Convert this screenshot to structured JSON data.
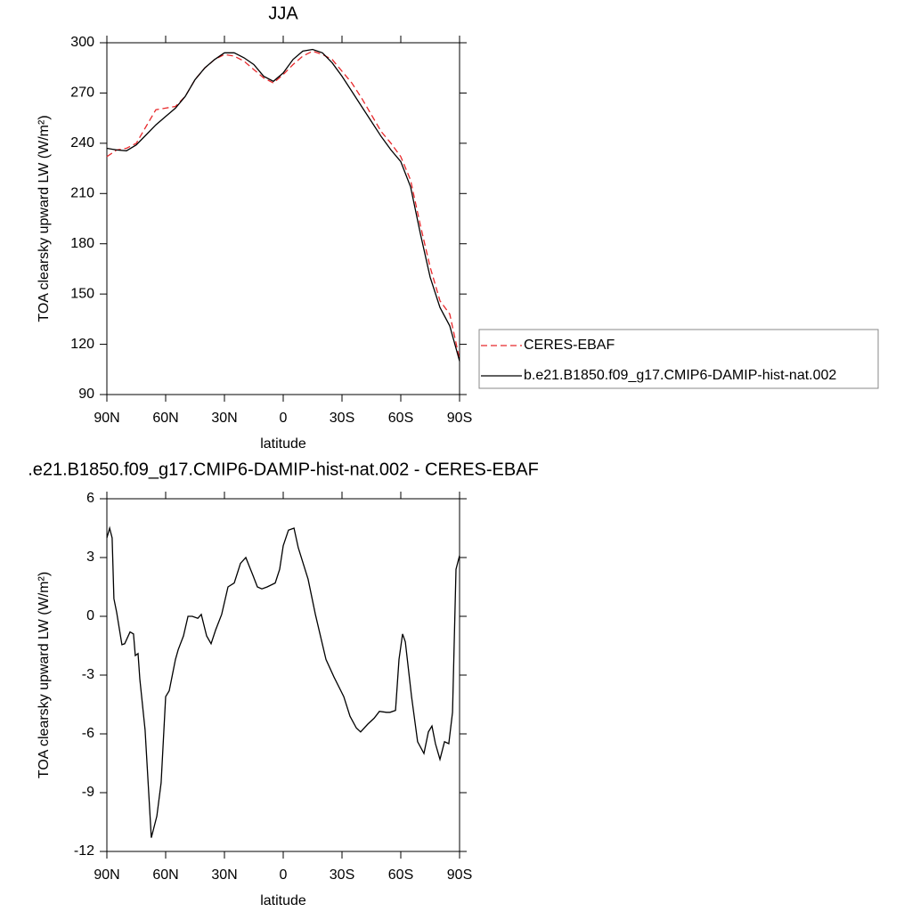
{
  "chart_data": [
    {
      "type": "line",
      "title": "JJA",
      "xlabel": "latitude",
      "ylabel": "TOA clearsky upward LW (W/m²)",
      "x": [
        90,
        85,
        80,
        75,
        70,
        65,
        60,
        55,
        50,
        45,
        40,
        35,
        30,
        25,
        20,
        15,
        10,
        5,
        0,
        -5,
        -10,
        -15,
        -20,
        -25,
        -30,
        -35,
        -40,
        -45,
        -50,
        -55,
        -60,
        -65,
        -70,
        -75,
        -80,
        -85,
        -90
      ],
      "series": [
        {
          "name": "CERES-EBAF",
          "color": "#e8282b",
          "dash": true,
          "values": [
            232,
            236,
            237,
            240,
            250,
            260,
            261,
            262,
            268,
            278,
            285,
            290,
            293,
            292,
            289,
            284,
            279,
            276,
            281,
            287,
            292,
            295,
            293,
            290,
            283,
            276,
            267,
            257,
            247,
            240,
            232,
            218,
            191,
            166,
            146,
            138,
            111
          ]
        },
        {
          "name": "b.e21.B1850.f09_g17.CMIP6-DAMIP-hist-nat.002",
          "color": "#000000",
          "dash": false,
          "values": [
            237,
            236,
            235.5,
            239,
            245,
            251,
            256,
            261,
            268,
            278,
            285,
            290,
            294,
            294,
            291,
            287,
            280,
            277,
            282,
            290,
            295,
            296,
            294,
            288,
            280,
            271,
            262,
            253,
            244,
            236,
            229,
            214,
            186,
            160,
            142,
            131,
            110
          ]
        }
      ],
      "xlim": [
        90,
        -90
      ],
      "xticks": [
        {
          "value": 90,
          "label": "90N"
        },
        {
          "value": 60,
          "label": "60N"
        },
        {
          "value": 30,
          "label": "30N"
        },
        0,
        {
          "value": -30,
          "label": "30S"
        },
        {
          "value": -60,
          "label": "60S"
        },
        {
          "value": -90,
          "label": "90S"
        }
      ],
      "ylim": [
        90,
        300
      ],
      "yticks": [
        90,
        120,
        150,
        180,
        210,
        240,
        270,
        300
      ],
      "legend": "right"
    },
    {
      "type": "line",
      "title": ".e21.B1850.f09_g17.CMIP6-DAMIP-hist-nat.002 - CERES-EBAF",
      "xlabel": "latitude",
      "ylabel": "TOA clearsky upward LW (W/m²)",
      "x": [
        90,
        88.6,
        87.3,
        86.4,
        85,
        82.3,
        80.9,
        78.2,
        76.4,
        75.5,
        74.1,
        73.2,
        70.5,
        67.3,
        64.5,
        62.3,
        60,
        58.2,
        55,
        53.6,
        50.9,
        48.6,
        46.4,
        43.6,
        41.8,
        39.1,
        36.8,
        34.5,
        31.4,
        28.2,
        25,
        21.8,
        19.1,
        15.5,
        13.2,
        10.9,
        8.2,
        4.1,
        1.8,
        0,
        -2.7,
        -5.5,
        -7.7,
        -12.7,
        -16.4,
        -21.8,
        -25.9,
        -30.9,
        -34.1,
        -37.3,
        -39.5,
        -43.2,
        -46.4,
        -49.1,
        -52.7,
        -54.5,
        -57.3,
        -59.1,
        -60.9,
        -62.3,
        -65.5,
        -68.6,
        -71.8,
        -74.1,
        -75.9,
        -77.7,
        -80,
        -82.3,
        -84.5,
        -86.4,
        -88.2,
        -90
      ],
      "series": [
        {
          "color": "#000000",
          "dash": false,
          "values": [
            4.0,
            4.5,
            4.0,
            0.9,
            0.2,
            -1.45,
            -1.4,
            -0.8,
            -0.9,
            -2.0,
            -1.9,
            -3.2,
            -5.8,
            -11.3,
            -10.2,
            -8.5,
            -4.1,
            -3.8,
            -2.2,
            -1.7,
            -1.0,
            0,
            0,
            -0.1,
            0.1,
            -1.0,
            -1.4,
            -0.7,
            0.1,
            1.5,
            1.7,
            2.7,
            3.0,
            2.1,
            1.5,
            1.4,
            1.5,
            1.7,
            2.4,
            3.6,
            4.4,
            4.5,
            3.5,
            1.9,
            0.1,
            -2.2,
            -3.1,
            -4.1,
            -5.1,
            -5.7,
            -5.9,
            -5.5,
            -5.2,
            -4.85,
            -4.9,
            -4.9,
            -4.8,
            -2.2,
            -0.9,
            -1.3,
            -4.1,
            -6.4,
            -7.0,
            -5.9,
            -5.6,
            -6.5,
            -7.3,
            -6.4,
            -6.5,
            -4.9,
            2.4,
            3.1
          ]
        }
      ],
      "xlim": [
        90,
        -90
      ],
      "xticks": [
        {
          "value": 90,
          "label": "90N"
        },
        {
          "value": 60,
          "label": "60N"
        },
        {
          "value": 30,
          "label": "30N"
        },
        0,
        {
          "value": -30,
          "label": "30S"
        },
        {
          "value": -60,
          "label": "60S"
        },
        {
          "value": -90,
          "label": "90S"
        }
      ],
      "ylim": [
        -12,
        6
      ],
      "yticks": [
        -12,
        -9,
        -6,
        -3,
        0,
        3,
        6
      ]
    }
  ]
}
